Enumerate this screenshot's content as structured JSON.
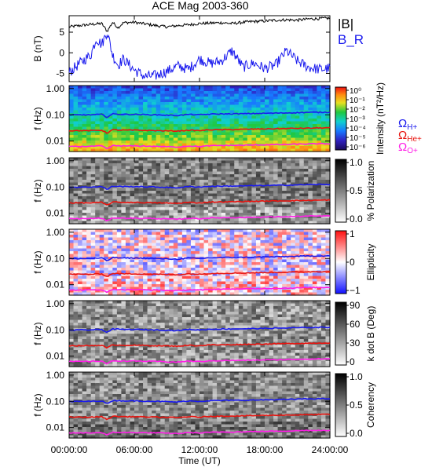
{
  "title": "ACE Mag 2003-360",
  "colors": {
    "bmag": "#000000",
    "br": "#1a1aee",
    "h_plus": "#1a1aee",
    "he_plus": "#e8140f",
    "o_plus": "#ff1fe6"
  },
  "chart_data": [
    {
      "type": "line",
      "panel": "magnetic-field",
      "ylabel": "B (nT)",
      "ylim": [
        -7,
        9
      ],
      "yticks": [
        "5",
        "0",
        "-5"
      ],
      "ytick_values": [
        5,
        0,
        -5
      ],
      "xlim": [
        0,
        24
      ],
      "xticks": [
        "00:00:00",
        "06:00:00",
        "12:00:00",
        "18:00:00",
        "24:00:00"
      ],
      "xlabel": "Time (UT)",
      "legend": [
        "|B|",
        "B_R"
      ],
      "series": [
        {
          "name": "|B|",
          "color_key": "bmag",
          "x": [
            0,
            1,
            2,
            3,
            3.5,
            4,
            4.5,
            5,
            6,
            7,
            8,
            9,
            10,
            11,
            12,
            13,
            14,
            15,
            16,
            17,
            18,
            19,
            20,
            21,
            22,
            23,
            24
          ],
          "y": [
            6.3,
            6.6,
            6.9,
            7.1,
            5.2,
            7.4,
            6.1,
            7.3,
            7.4,
            7.0,
            6.6,
            6.3,
            6.6,
            6.8,
            7.1,
            7.2,
            7.3,
            7.1,
            7.4,
            7.6,
            7.7,
            7.9,
            8.0,
            7.9,
            8.2,
            8.3,
            8.4
          ]
        },
        {
          "name": "B_R",
          "color_key": "br",
          "x": [
            0,
            1,
            2,
            2.5,
            3,
            3.5,
            4,
            4.5,
            5,
            6,
            7,
            8,
            9,
            10,
            11,
            12,
            13,
            14,
            15,
            16,
            17,
            18,
            19,
            20,
            21,
            22,
            23,
            24
          ],
          "y": [
            -4.8,
            -2.5,
            -0.5,
            3.5,
            2.0,
            5.2,
            -0.5,
            -3.0,
            -1.5,
            -4.2,
            -5.8,
            -5.5,
            -4.5,
            -3.2,
            -4.0,
            -1.5,
            -2.6,
            -2.0,
            0.5,
            -3.5,
            -2.5,
            -3.8,
            -3.0,
            0.5,
            -2.0,
            -3.5,
            -4.0,
            -3.8
          ]
        }
      ]
    },
    {
      "type": "heatmap",
      "panel": "intensity",
      "ylabel": "f (Hz)",
      "yticks": [
        "1.00",
        "0.10",
        "0.01"
      ],
      "ylim": [
        0.004,
        1.3
      ],
      "yscale": "log",
      "colorbar_label": "Intensity (nT²/Hz)",
      "colorbar_ticks": [
        "10⁰",
        "10⁻¹",
        "10⁻²",
        "10⁻³",
        "10⁻⁴",
        "10⁻⁵",
        "10⁻⁶"
      ],
      "colorscale": "rainbow",
      "lines": [
        "Ω_H+",
        "Ω_He+",
        "Ω_O+"
      ]
    },
    {
      "type": "heatmap",
      "panel": "polarization",
      "ylabel": "f (Hz)",
      "yticks": [
        "1.00",
        "0.10",
        "0.01"
      ],
      "yscale": "log",
      "colorbar_label": "% Polarization",
      "colorbar_ticks": [
        "1.0",
        "0.5",
        "0.0"
      ],
      "colorscale": "grayscale"
    },
    {
      "type": "heatmap",
      "panel": "ellipticity",
      "ylabel": "f (Hz)",
      "yticks": [
        "1.00",
        "0.10",
        "0.01"
      ],
      "yscale": "log",
      "colorbar_label": "Ellipticity",
      "colorbar_ticks": [
        "1",
        "0",
        "−1"
      ],
      "colorscale": "blue-white-red"
    },
    {
      "type": "heatmap",
      "panel": "k-dot-b",
      "ylabel": "f (Hz)",
      "yticks": [
        "1.00",
        "0.10",
        "0.01"
      ],
      "yscale": "log",
      "colorbar_label": "k dot B (Deg)",
      "colorbar_ticks": [
        "90",
        "60",
        "30",
        "0"
      ],
      "colorscale": "grayscale"
    },
    {
      "type": "heatmap",
      "panel": "coherency",
      "ylabel": "f (Hz)",
      "yticks": [
        "1.00",
        "0.10",
        "0.01"
      ],
      "yscale": "log",
      "colorbar_label": "Coherency",
      "colorbar_ticks": [
        "1.0",
        "0.5",
        "0.0"
      ],
      "colorscale": "grayscale"
    }
  ],
  "gyro_lines": {
    "x": [
      0,
      2,
      3,
      3.5,
      4,
      5,
      6,
      8,
      10,
      11,
      12,
      13,
      14,
      16,
      18,
      20,
      22,
      24
    ],
    "H+": [
      0.098,
      0.1,
      0.104,
      0.08,
      0.108,
      0.104,
      0.104,
      0.1,
      0.094,
      0.104,
      0.1,
      0.106,
      0.108,
      0.11,
      0.114,
      0.118,
      0.124,
      0.126
    ],
    "He+": [
      0.025,
      0.025,
      0.026,
      0.02,
      0.027,
      0.026,
      0.026,
      0.025,
      0.024,
      0.026,
      0.025,
      0.027,
      0.027,
      0.028,
      0.029,
      0.03,
      0.031,
      0.032
    ],
    "O+": [
      0.0062,
      0.0063,
      0.0065,
      0.005,
      0.0067,
      0.0065,
      0.0065,
      0.0063,
      0.0059,
      0.0065,
      0.0062,
      0.0066,
      0.0068,
      0.0069,
      0.0072,
      0.0074,
      0.0078,
      0.0079
    ]
  }
}
